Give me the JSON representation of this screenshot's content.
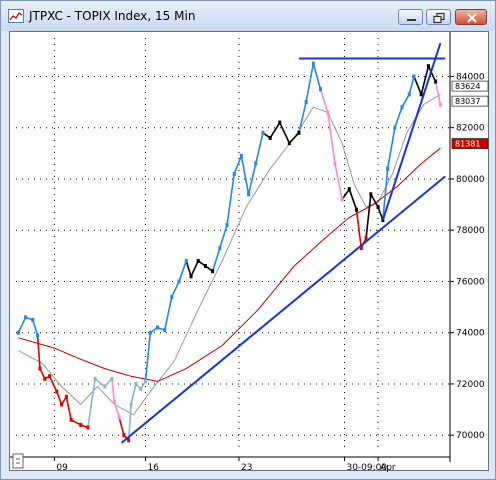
{
  "window": {
    "title": "JTPXC - TOPIX Index, 15 Min",
    "minimize_icon": "minimize-icon",
    "maximize_icon": "restore-icon",
    "close_icon": "close-icon"
  },
  "chart_data": {
    "type": "line",
    "title": "",
    "ylim": [
      69500,
      85500
    ],
    "yticks": [
      70000,
      72000,
      74000,
      76000,
      78000,
      80000,
      82000,
      84000
    ],
    "yticks_labels": [
      "70000",
      "72000",
      "74000",
      "76000",
      "78000",
      "80000",
      "82000",
      "84000"
    ],
    "xticks": [
      {
        "label": "09",
        "idx": 1.5
      },
      {
        "label": "16",
        "idx": 5.3
      },
      {
        "label": "23",
        "idx": 9.2
      },
      {
        "label": "30-09:00",
        "idx": 13.6
      },
      {
        "label": "Apr",
        "idx": 15.0
      }
    ],
    "price_labels": [
      {
        "text": "83624",
        "value": 83624,
        "bg": "#ffffff",
        "fg": "#000000"
      },
      {
        "text": "83037",
        "value": 83037,
        "bg": "#ffffff",
        "fg": "#000000"
      },
      {
        "text": "81381",
        "value": 81381,
        "bg": "#cc0000",
        "fg": "#ffffff"
      }
    ],
    "price_series": [
      {
        "x": 0.0,
        "y": 74000,
        "c": "#2b86d8"
      },
      {
        "x": 0.3,
        "y": 74600,
        "c": "#2b86d8"
      },
      {
        "x": 0.6,
        "y": 74500,
        "c": "#2b86d8"
      },
      {
        "x": 0.8,
        "y": 73900,
        "c": "#2b86d8"
      },
      {
        "x": 0.9,
        "y": 72600,
        "c": "#d80000"
      },
      {
        "x": 1.1,
        "y": 72200,
        "c": "#d80000"
      },
      {
        "x": 1.3,
        "y": 72300,
        "c": "#d80000"
      },
      {
        "x": 1.6,
        "y": 71700,
        "c": "#d80000"
      },
      {
        "x": 1.8,
        "y": 71200,
        "c": "#d80000"
      },
      {
        "x": 2.0,
        "y": 71500,
        "c": "#d80000"
      },
      {
        "x": 2.2,
        "y": 70600,
        "c": "#d80000"
      },
      {
        "x": 2.6,
        "y": 70400,
        "c": "#d80000"
      },
      {
        "x": 2.9,
        "y": 70300,
        "c": "#d80000"
      },
      {
        "x": 3.2,
        "y": 72200,
        "c": "#8fb3cf"
      },
      {
        "x": 3.6,
        "y": 71900,
        "c": "#8fb3cf"
      },
      {
        "x": 3.9,
        "y": 72200,
        "c": "#8fb3cf"
      },
      {
        "x": 4.0,
        "y": 71300,
        "c": "#f08fd8"
      },
      {
        "x": 4.2,
        "y": 70700,
        "c": "#f08fd8"
      },
      {
        "x": 4.4,
        "y": 70000,
        "c": "#d80000"
      },
      {
        "x": 4.6,
        "y": 69800,
        "c": "#d80000"
      },
      {
        "x": 4.7,
        "y": 71200,
        "c": "#8fb3cf"
      },
      {
        "x": 4.9,
        "y": 72000,
        "c": "#8fb3cf"
      },
      {
        "x": 5.1,
        "y": 71800,
        "c": "#8fb3cf"
      },
      {
        "x": 5.3,
        "y": 72100,
        "c": "#8fb3cf"
      },
      {
        "x": 5.5,
        "y": 74000,
        "c": "#2b86d8"
      },
      {
        "x": 5.8,
        "y": 74200,
        "c": "#2b86d8"
      },
      {
        "x": 6.1,
        "y": 74100,
        "c": "#2b86d8"
      },
      {
        "x": 6.4,
        "y": 75400,
        "c": "#2b86d8"
      },
      {
        "x": 6.7,
        "y": 76000,
        "c": "#2b86d8"
      },
      {
        "x": 7.0,
        "y": 76800,
        "c": "#2b86d8"
      },
      {
        "x": 7.2,
        "y": 76200,
        "c": "#000000"
      },
      {
        "x": 7.5,
        "y": 76800,
        "c": "#000000"
      },
      {
        "x": 7.8,
        "y": 76600,
        "c": "#000000"
      },
      {
        "x": 8.1,
        "y": 76400,
        "c": "#000000"
      },
      {
        "x": 8.4,
        "y": 77300,
        "c": "#2b86d8"
      },
      {
        "x": 8.7,
        "y": 78200,
        "c": "#2b86d8"
      },
      {
        "x": 9.0,
        "y": 80200,
        "c": "#2b86d8"
      },
      {
        "x": 9.3,
        "y": 80900,
        "c": "#2b86d8"
      },
      {
        "x": 9.6,
        "y": 79400,
        "c": "#2b86d8"
      },
      {
        "x": 9.9,
        "y": 80600,
        "c": "#2b86d8"
      },
      {
        "x": 10.2,
        "y": 81800,
        "c": "#2b86d8"
      },
      {
        "x": 10.5,
        "y": 81600,
        "c": "#000000"
      },
      {
        "x": 10.9,
        "y": 82200,
        "c": "#000000"
      },
      {
        "x": 11.3,
        "y": 81400,
        "c": "#000000"
      },
      {
        "x": 11.7,
        "y": 81800,
        "c": "#000000"
      },
      {
        "x": 12.0,
        "y": 83000,
        "c": "#2b86d8"
      },
      {
        "x": 12.3,
        "y": 84500,
        "c": "#2b86d8"
      },
      {
        "x": 12.6,
        "y": 83500,
        "c": "#2b86d8"
      },
      {
        "x": 12.9,
        "y": 82600,
        "c": "#f08fd8"
      },
      {
        "x": 13.2,
        "y": 80600,
        "c": "#f08fd8"
      },
      {
        "x": 13.5,
        "y": 79200,
        "c": "#f08fd8"
      },
      {
        "x": 13.8,
        "y": 79600,
        "c": "#000000"
      },
      {
        "x": 14.1,
        "y": 78800,
        "c": "#000000"
      },
      {
        "x": 14.3,
        "y": 77300,
        "c": "#d80000"
      },
      {
        "x": 14.5,
        "y": 77700,
        "c": "#d80000"
      },
      {
        "x": 14.7,
        "y": 79400,
        "c": "#000000"
      },
      {
        "x": 15.0,
        "y": 78900,
        "c": "#000000"
      },
      {
        "x": 15.2,
        "y": 78400,
        "c": "#000000"
      },
      {
        "x": 15.4,
        "y": 80400,
        "c": "#2b86d8"
      },
      {
        "x": 15.7,
        "y": 82000,
        "c": "#2b86d8"
      },
      {
        "x": 16.0,
        "y": 82800,
        "c": "#2b86d8"
      },
      {
        "x": 16.3,
        "y": 83300,
        "c": "#2b86d8"
      },
      {
        "x": 16.5,
        "y": 84000,
        "c": "#2b86d8"
      },
      {
        "x": 16.8,
        "y": 83300,
        "c": "#000000"
      },
      {
        "x": 17.1,
        "y": 84400,
        "c": "#000000"
      },
      {
        "x": 17.4,
        "y": 83800,
        "c": "#000000"
      },
      {
        "x": 17.6,
        "y": 82900,
        "c": "#f08fd8"
      }
    ],
    "series": [
      {
        "color": "#999999",
        "points": [
          [
            0.0,
            73300
          ],
          [
            1.0,
            72800
          ],
          [
            1.8,
            71900
          ],
          [
            2.6,
            71200
          ],
          [
            3.3,
            71900
          ],
          [
            4.0,
            71200
          ],
          [
            4.8,
            70800
          ],
          [
            5.5,
            71700
          ],
          [
            6.5,
            72900
          ],
          [
            7.5,
            74900
          ],
          [
            8.5,
            76800
          ],
          [
            9.5,
            78900
          ],
          [
            10.5,
            80400
          ],
          [
            11.5,
            81600
          ],
          [
            12.3,
            82800
          ],
          [
            12.9,
            82600
          ],
          [
            13.5,
            81400
          ],
          [
            14.0,
            79800
          ],
          [
            14.5,
            78900
          ],
          [
            15.0,
            79100
          ],
          [
            15.6,
            80200
          ],
          [
            16.2,
            81800
          ],
          [
            16.9,
            82900
          ],
          [
            17.6,
            83300
          ]
        ]
      },
      {
        "color": "#b40000",
        "points": [
          [
            0.0,
            73800
          ],
          [
            1.5,
            73400
          ],
          [
            2.5,
            73000
          ],
          [
            3.6,
            72600
          ],
          [
            4.7,
            72300
          ],
          [
            5.8,
            72100
          ],
          [
            7.0,
            72600
          ],
          [
            8.5,
            73500
          ],
          [
            10.0,
            74900
          ],
          [
            11.5,
            76600
          ],
          [
            12.8,
            77700
          ],
          [
            13.8,
            78500
          ],
          [
            14.8,
            79000
          ],
          [
            15.8,
            79700
          ],
          [
            16.8,
            80600
          ],
          [
            17.6,
            81200
          ]
        ]
      }
    ],
    "trend_lines": [
      {
        "color": "#1a33d9",
        "from": [
          4.3,
          69700
        ],
        "to": [
          17.8,
          80100
        ]
      },
      {
        "color": "#1a33d9",
        "from": [
          15.2,
          78400
        ],
        "to": [
          17.6,
          85300
        ]
      },
      {
        "color": "#1a33d9",
        "from": [
          11.7,
          84700
        ],
        "to": [
          17.8,
          84700
        ]
      }
    ]
  }
}
